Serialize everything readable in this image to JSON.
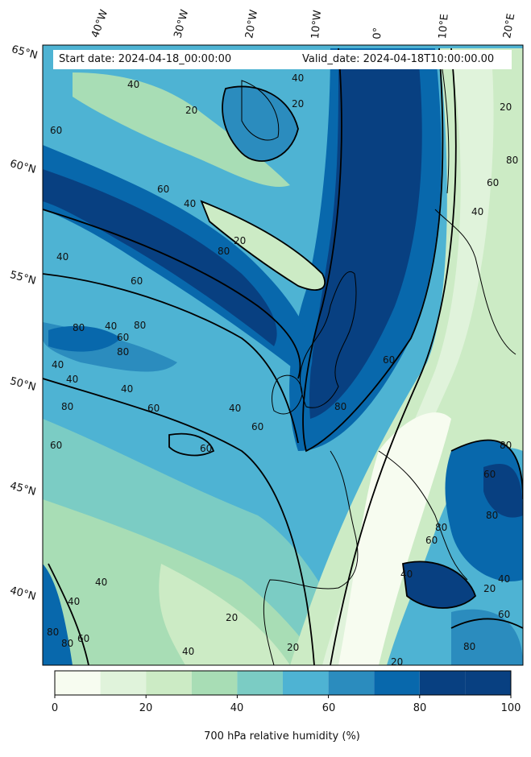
{
  "header": {
    "start_date": "Start date: 2024-04-18_00:00:00",
    "valid_date": "Valid_date: 2024-04-18T10:00:00.00"
  },
  "latitude_labels": [
    "65°N",
    "60°N",
    "55°N",
    "50°N",
    "45°N",
    "40°N"
  ],
  "longitude_labels": [
    "40°W",
    "30°W",
    "20°W",
    "10°W",
    "0°",
    "10°E",
    "20°E"
  ],
  "contour_labels": [
    "20",
    "40",
    "60",
    "80"
  ],
  "colorbar": {
    "title": "700 hPa relative humidity (%)",
    "ticks": [
      "0",
      "20",
      "40",
      "60",
      "80",
      "100"
    ],
    "levels": [
      0,
      10,
      20,
      30,
      40,
      50,
      60,
      70,
      80,
      90,
      100
    ],
    "colors": [
      "#f7fcf0",
      "#e0f3db",
      "#ccebc5",
      "#a8ddb5",
      "#7bccc4",
      "#4eb3d3",
      "#2b8cbe",
      "#0868ac",
      "#084081",
      "#084081"
    ]
  },
  "map_colors": {
    "land_outline": "#000000",
    "contour": "#000000"
  }
}
